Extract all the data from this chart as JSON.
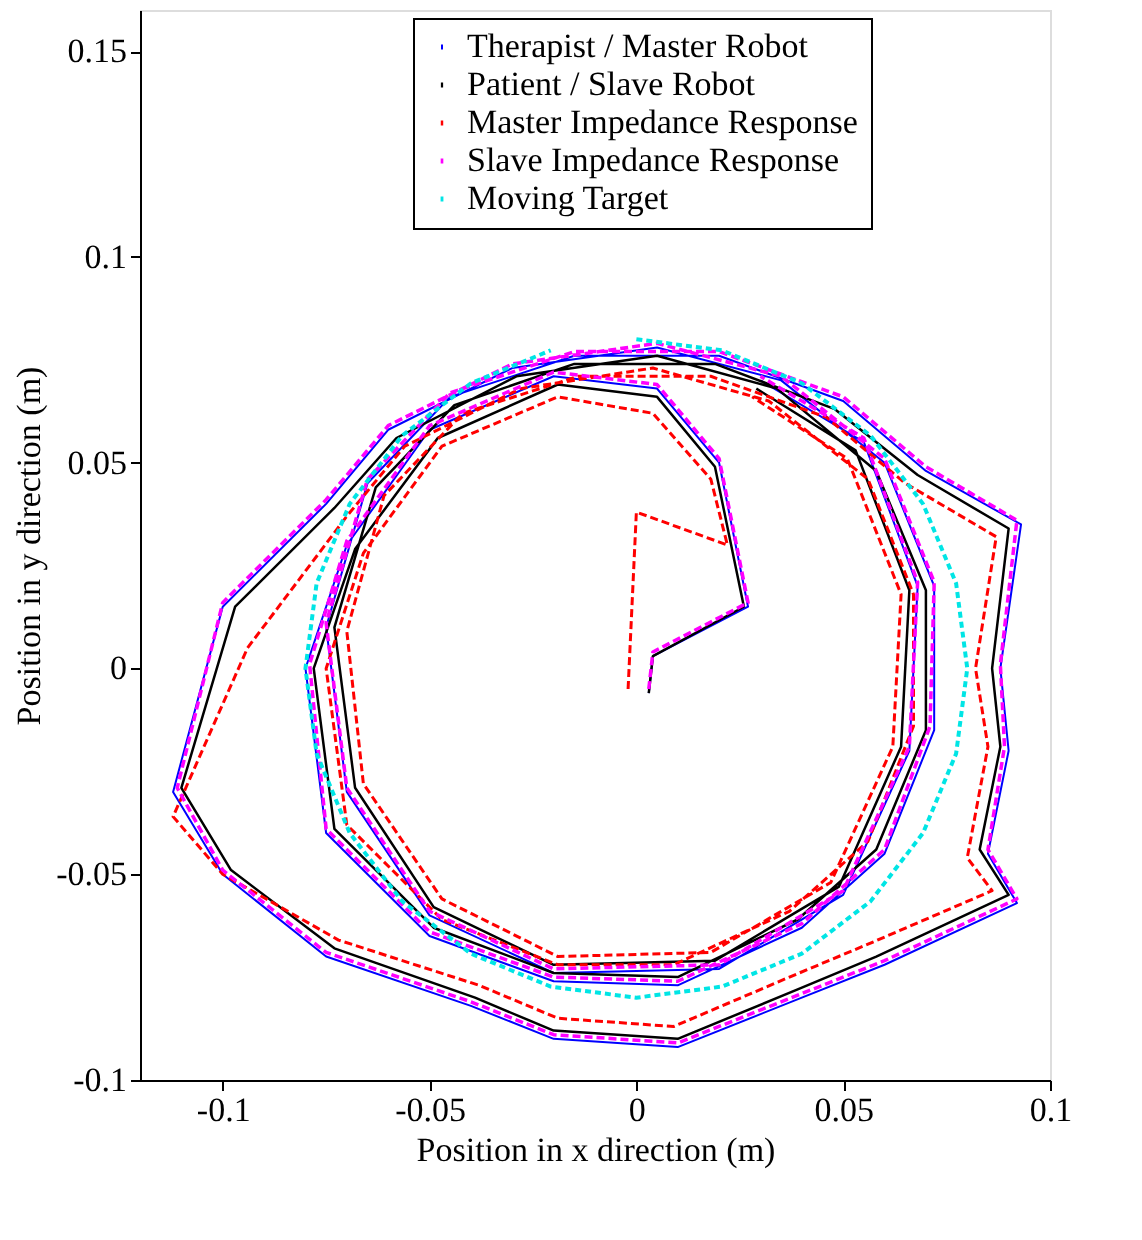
{
  "chart_data": {
    "type": "line",
    "xlabel": "Position in x direction (m)",
    "ylabel": "Position in y direction (m)",
    "xlim": [
      -0.12,
      0.1
    ],
    "xticks": [
      -0.1,
      -0.05,
      0,
      0.05,
      0.1
    ],
    "ylim": [
      -0.1,
      0.16
    ],
    "yticks": [
      -0.1,
      -0.05,
      0,
      0.05,
      0.1,
      0.15
    ],
    "grid": false,
    "legend": "top",
    "marker": "none",
    "series": [
      {
        "name": "Therapist / Master Robot",
        "color": "#0000ff",
        "line_style": "solid",
        "x": [
          0.003,
          0.004,
          0.027,
          0.02,
          0.005,
          -0.02,
          -0.05,
          -0.07,
          -0.08,
          -0.075,
          -0.05,
          -0.02,
          0.01,
          0.04,
          0.06,
          0.072,
          0.072,
          0.06,
          0.035,
          0.005,
          -0.03,
          -0.06,
          -0.075,
          -0.1,
          -0.112,
          -0.1,
          -0.075,
          -0.04,
          -0.02,
          0.01,
          0.04,
          0.06,
          0.092,
          0.085,
          0.09,
          0.088,
          0.093,
          0.07,
          0.05,
          0.02,
          -0.015,
          -0.045,
          -0.065,
          -0.075,
          -0.07,
          -0.05,
          -0.02,
          0.02,
          0.05,
          0.066,
          0.068,
          0.055,
          0.03
        ],
        "values": [
          -0.006,
          0.003,
          0.015,
          0.05,
          0.068,
          0.071,
          0.058,
          0.03,
          0.0,
          -0.04,
          -0.065,
          -0.076,
          -0.077,
          -0.063,
          -0.045,
          -0.015,
          0.02,
          0.05,
          0.07,
          0.078,
          0.073,
          0.058,
          0.04,
          0.015,
          -0.03,
          -0.05,
          -0.07,
          -0.082,
          -0.09,
          -0.092,
          -0.08,
          -0.072,
          -0.057,
          -0.045,
          -0.02,
          0.0,
          0.035,
          0.048,
          0.065,
          0.076,
          0.076,
          0.066,
          0.045,
          0.01,
          -0.03,
          -0.06,
          -0.074,
          -0.073,
          -0.055,
          -0.02,
          0.02,
          0.055,
          0.07
        ]
      },
      {
        "name": "Patient / Slave Robot",
        "color": "#000000",
        "line_style": "solid",
        "x": [
          0.003,
          0.004,
          0.026,
          0.019,
          0.005,
          -0.019,
          -0.048,
          -0.068,
          -0.078,
          -0.073,
          -0.049,
          -0.02,
          0.01,
          0.039,
          0.058,
          0.07,
          0.07,
          0.058,
          0.034,
          0.005,
          -0.029,
          -0.058,
          -0.073,
          -0.097,
          -0.11,
          -0.098,
          -0.073,
          -0.039,
          -0.02,
          0.01,
          0.039,
          0.058,
          0.09,
          0.083,
          0.088,
          0.086,
          0.09,
          0.068,
          0.048,
          0.019,
          -0.015,
          -0.044,
          -0.063,
          -0.073,
          -0.068,
          -0.049,
          -0.02,
          0.019,
          0.049,
          0.064,
          0.066,
          0.053,
          0.029
        ],
        "values": [
          -0.006,
          0.003,
          0.015,
          0.049,
          0.066,
          0.069,
          0.056,
          0.029,
          0.0,
          -0.039,
          -0.063,
          -0.074,
          -0.075,
          -0.061,
          -0.044,
          -0.015,
          0.019,
          0.048,
          0.068,
          0.076,
          0.071,
          0.056,
          0.039,
          0.015,
          -0.029,
          -0.049,
          -0.068,
          -0.08,
          -0.088,
          -0.09,
          -0.078,
          -0.07,
          -0.055,
          -0.044,
          -0.019,
          0.0,
          0.034,
          0.047,
          0.063,
          0.074,
          0.074,
          0.064,
          0.044,
          0.01,
          -0.029,
          -0.058,
          -0.072,
          -0.071,
          -0.053,
          -0.019,
          0.019,
          0.053,
          0.068
        ]
      },
      {
        "name": "Master Impedance Response",
        "color": "#ff0000",
        "line_style": "dashed",
        "x": [
          -0.002,
          0.0,
          0.022,
          0.018,
          0.004,
          -0.019,
          -0.047,
          -0.066,
          -0.075,
          -0.07,
          -0.047,
          -0.019,
          0.009,
          0.037,
          0.056,
          0.067,
          0.067,
          0.056,
          0.032,
          0.004,
          -0.028,
          -0.056,
          -0.07,
          -0.094,
          -0.112,
          -0.1,
          -0.072,
          -0.038,
          -0.019,
          0.009,
          0.037,
          0.056,
          0.086,
          0.08,
          0.085,
          0.082,
          0.087,
          0.065,
          0.046,
          0.018,
          -0.014,
          -0.042,
          -0.061,
          -0.07,
          -0.066,
          -0.047,
          -0.019,
          0.018,
          0.047,
          0.062,
          0.064,
          0.051,
          0.028
        ],
        "values": [
          -0.005,
          0.038,
          0.03,
          0.046,
          0.062,
          0.066,
          0.054,
          0.028,
          0.0,
          -0.038,
          -0.061,
          -0.072,
          -0.072,
          -0.059,
          -0.042,
          -0.014,
          0.018,
          0.046,
          0.065,
          0.073,
          0.068,
          0.054,
          0.037,
          0.005,
          -0.036,
          -0.05,
          -0.066,
          -0.077,
          -0.085,
          -0.087,
          -0.075,
          -0.067,
          -0.054,
          -0.046,
          -0.019,
          0.0,
          0.032,
          0.045,
          0.061,
          0.071,
          0.071,
          0.062,
          0.042,
          0.009,
          -0.028,
          -0.056,
          -0.07,
          -0.069,
          -0.052,
          -0.019,
          0.018,
          0.051,
          0.066
        ]
      },
      {
        "name": "Slave Impedance Response",
        "color": "#ff00ff",
        "line_style": "dashed",
        "x": [
          0.003,
          0.004,
          0.027,
          0.02,
          0.005,
          -0.02,
          -0.05,
          -0.07,
          -0.079,
          -0.075,
          -0.05,
          -0.02,
          0.01,
          0.04,
          0.06,
          0.071,
          0.072,
          0.06,
          0.035,
          0.005,
          -0.03,
          -0.06,
          -0.075,
          -0.1,
          -0.111,
          -0.1,
          -0.075,
          -0.04,
          -0.02,
          0.01,
          0.04,
          0.06,
          0.092,
          0.085,
          0.089,
          0.088,
          0.092,
          0.07,
          0.05,
          0.02,
          -0.015,
          -0.045,
          -0.065,
          -0.075,
          -0.07,
          -0.05,
          -0.02,
          0.02,
          0.05,
          0.066,
          0.068,
          0.055,
          0.03
        ],
        "values": [
          -0.005,
          0.004,
          0.016,
          0.051,
          0.069,
          0.072,
          0.059,
          0.031,
          0.001,
          -0.039,
          -0.064,
          -0.075,
          -0.076,
          -0.062,
          -0.044,
          -0.014,
          0.021,
          0.051,
          0.071,
          0.079,
          0.074,
          0.059,
          0.041,
          0.016,
          -0.029,
          -0.049,
          -0.069,
          -0.081,
          -0.089,
          -0.091,
          -0.079,
          -0.071,
          -0.056,
          -0.044,
          -0.019,
          0.001,
          0.036,
          0.049,
          0.066,
          0.077,
          0.077,
          0.067,
          0.046,
          0.011,
          -0.029,
          -0.059,
          -0.073,
          -0.072,
          -0.054,
          -0.019,
          0.021,
          0.056,
          0.071
        ]
      },
      {
        "name": "Moving Target",
        "color": "#00e5e5",
        "line_style": "dotted",
        "x": [
          0.0,
          0.0207,
          0.04,
          0.0566,
          0.0693,
          0.0773,
          0.08,
          0.0773,
          0.0693,
          0.0566,
          0.04,
          0.0207,
          0.0,
          -0.0207,
          -0.04,
          -0.0566,
          -0.0693,
          -0.0773,
          -0.08,
          -0.0773,
          -0.0693,
          -0.0566,
          -0.04,
          -0.0207
        ],
        "values": [
          0.08,
          0.0773,
          0.0693,
          0.0566,
          0.04,
          0.0207,
          0.0,
          -0.0207,
          -0.04,
          -0.0566,
          -0.0693,
          -0.0773,
          -0.08,
          -0.0773,
          -0.0693,
          -0.0566,
          -0.04,
          -0.0207,
          0.0,
          0.0207,
          0.04,
          0.0566,
          0.0693,
          0.0773
        ]
      }
    ]
  }
}
